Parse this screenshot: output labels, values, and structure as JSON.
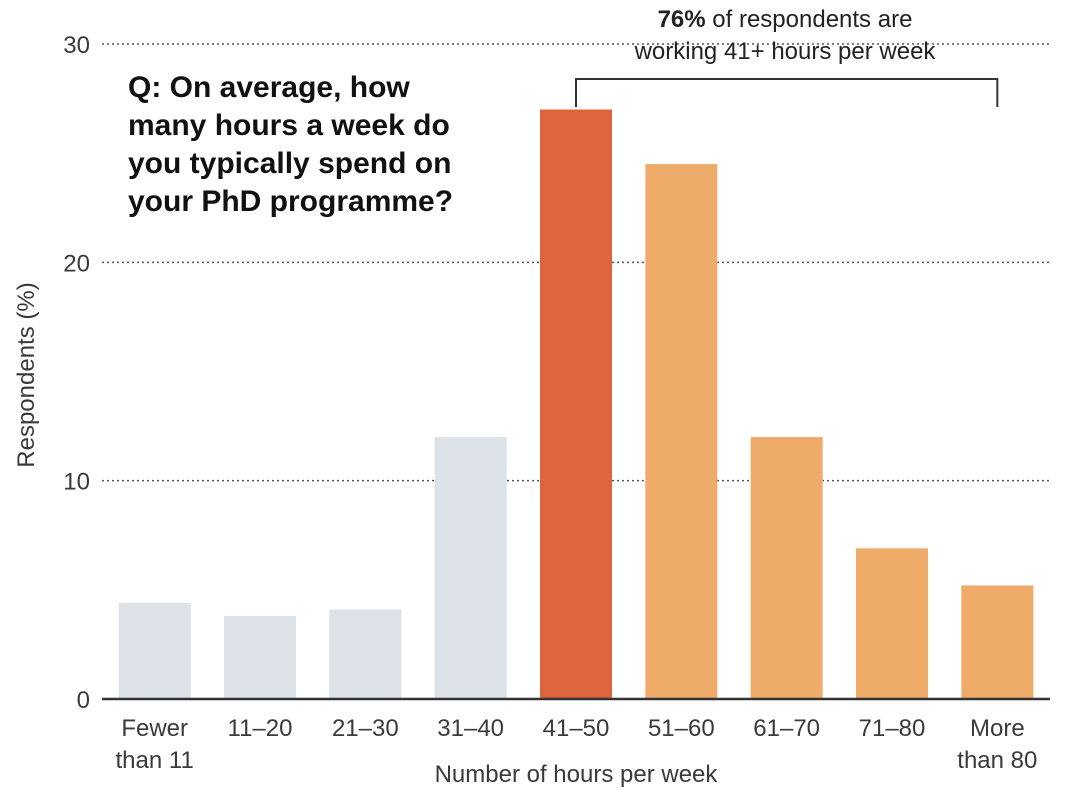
{
  "chart_data": {
    "type": "bar",
    "question": [
      "Q: On average, how",
      "many hours a week do",
      "you typically spend on",
      "your PhD programme?"
    ],
    "xlabel": "Number of hours per week",
    "ylabel": "Respondents (%)",
    "ylim": [
      0,
      30
    ],
    "yticks": [
      0,
      10,
      20,
      30
    ],
    "grid": true,
    "categories": [
      [
        "Fewer",
        "than 11"
      ],
      [
        "11–20"
      ],
      [
        "21–30"
      ],
      [
        "31–40"
      ],
      [
        "41–50"
      ],
      [
        "51–60"
      ],
      [
        "61–70"
      ],
      [
        "71–80"
      ],
      [
        "More",
        "than 80"
      ]
    ],
    "values": [
      4.4,
      3.8,
      4.1,
      12.0,
      27.0,
      24.5,
      12.0,
      6.9,
      5.2
    ],
    "bar_colors": [
      "#dde1e8",
      "#dde1e8",
      "#dde1e8",
      "#dde1e8",
      "#dd653d",
      "#eeab6a",
      "#eeab6a",
      "#eeab6a",
      "#eeab6a"
    ],
    "annotation": {
      "bold": "76%",
      "line1_rest": " of respondents are",
      "line2": "working 41+ hours per week",
      "bracket_from_category": 4,
      "bracket_to_category": 8
    }
  }
}
